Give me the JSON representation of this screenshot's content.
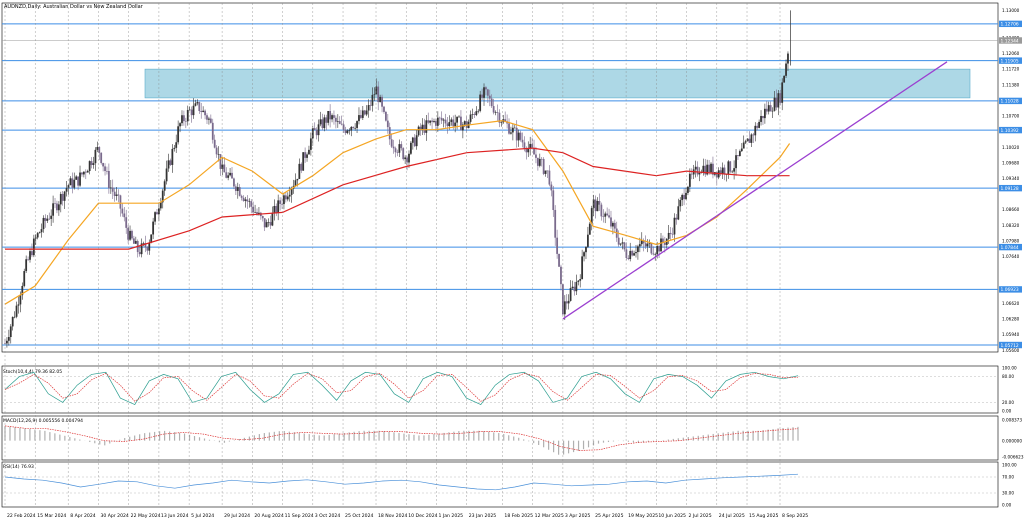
{
  "title": "AUDNZD,Daily: Australian Dollar vs New Zealand Dollar",
  "price_axis_labels": [
    "1.13000",
    "1.12400",
    "1.12060",
    "1.11720",
    "1.11380",
    "1.10700",
    "1.10020",
    "1.09680",
    "1.09340",
    "1.08660",
    "1.08320",
    "1.07980",
    "1.07640",
    "1.06620",
    "1.06280",
    "1.05940",
    "1.05600"
  ],
  "level_labels": [
    "1.12706",
    "1.11905",
    "1.11028",
    "1.10392",
    "1.09128",
    "1.07844",
    "1.06923",
    "1.05712"
  ],
  "current_price_label": "1.12344",
  "date_labels": [
    "22 Feb 2024",
    "15 Mar 2024",
    "8 Apr 2024",
    "30 Apr 2024",
    "22 May 2024",
    "13 Jun 2024",
    "5 Jul 2024",
    "29 Jul 2024",
    "20 Aug 2024",
    "11 Sep 2024",
    "3 Oct 2024",
    "25 Oct 2024",
    "18 Nov 2024",
    "10 Dec 2024",
    "1 Jan 2025",
    "23 Jan 2025",
    "18 Feb 2025",
    "12 Mar 2025",
    "3 Apr 2025",
    "25 Apr 2025",
    "19 May 2025",
    "10 Jun 2025",
    "2 Jul 2025",
    "24 Jul 2025",
    "15 Aug 2025",
    "8 Sep 2025"
  ],
  "stoch": {
    "label": "Stoch(10,4,4) 79.36 82.05",
    "axis_labels": [
      "100.00",
      "80.00",
      "20.00",
      "0.00"
    ]
  },
  "macd": {
    "label": "MACD(12,26,9) 0.005556 0.004794",
    "axis_labels": [
      "0.008373",
      "0.000000",
      "-0.006623"
    ]
  },
  "rsi": {
    "label": "RSI(14) 76.93",
    "axis_labels": [
      "100.00",
      "70.00",
      "30.00",
      "0.00"
    ]
  },
  "colors": {
    "up": "#333333",
    "down": "#7a6a8c",
    "level": "#3c8ee6",
    "zone": "#add8e6",
    "ma_fast": "#f5a623",
    "ma_slow": "#dd2222",
    "trend": "#9b3fd0",
    "stoch_main": "#2a9d8f",
    "stoch_signal": "#dd3333",
    "macd_hist": "#b0b0b0",
    "macd_signal": "#dd3333",
    "rsi": "#4a90d9"
  },
  "chart_data": {
    "type": "candlestick",
    "symbol": "AUDNZD",
    "timeframe": "Daily",
    "ylim": [
      1.0556,
      1.1316
    ],
    "horizontal_levels": [
      1.12706,
      1.11905,
      1.11028,
      1.10392,
      1.09128,
      1.07844,
      1.06923,
      1.05712
    ],
    "resistance_zone": [
      1.11028,
      1.1172
    ],
    "trend_line": {
      "from": [
        "3 Apr 2025",
        1.0628
      ],
      "to": [
        "~Oct 2025",
        1.1188
      ]
    },
    "close_path": [
      [
        "22 Feb 2024",
        1.0575
      ],
      [
        "1 Mar 2024",
        1.065
      ],
      [
        "8 Mar 2024",
        1.074
      ],
      [
        "15 Mar 2024",
        1.08
      ],
      [
        "22 Mar 2024",
        1.084
      ],
      [
        "29 Mar 2024",
        1.087
      ],
      [
        "8 Apr 2024",
        1.092
      ],
      [
        "15 Apr 2024",
        1.093
      ],
      [
        "22 Apr 2024",
        1.096
      ],
      [
        "30 Apr 2024",
        1.1
      ],
      [
        "8 May 2024",
        1.092
      ],
      [
        "15 May 2024",
        1.088
      ],
      [
        "22 May 2024",
        1.081
      ],
      [
        "29 May 2024",
        1.0775
      ],
      [
        "5 Jun 2024",
        1.079
      ],
      [
        "13 Jun 2024",
        1.088
      ],
      [
        "20 Jun 2024",
        1.096
      ],
      [
        "28 Jun 2024",
        1.105
      ],
      [
        "5 Jul 2024",
        1.108
      ],
      [
        "12 Jul 2024",
        1.109
      ],
      [
        "20 Jul 2024",
        1.106
      ],
      [
        "29 Jul 2024",
        1.095
      ],
      [
        "8 Aug 2024",
        1.092
      ],
      [
        "20 Aug 2024",
        1.087
      ],
      [
        "30 Aug 2024",
        1.083
      ],
      [
        "11 Sep 2024",
        1.089
      ],
      [
        "20 Sep 2024",
        1.093
      ],
      [
        "3 Oct 2024",
        1.103
      ],
      [
        "15 Oct 2024",
        1.107
      ],
      [
        "25 Oct 2024",
        1.104
      ],
      [
        "5 Nov 2024",
        1.106
      ],
      [
        "12 Nov 2024",
        1.108
      ],
      [
        "18 Nov 2024",
        1.113
      ],
      [
        "28 Nov 2024",
        1.102
      ],
      [
        "10 Dec 2024",
        1.098
      ],
      [
        "20 Dec 2024",
        1.104
      ],
      [
        "1 Jan 2025",
        1.106
      ],
      [
        "10 Jan 2025",
        1.106
      ],
      [
        "23 Jan 2025",
        1.105
      ],
      [
        "5 Feb 2025",
        1.112
      ],
      [
        "18 Feb 2025",
        1.106
      ],
      [
        "28 Feb 2025",
        1.103
      ],
      [
        "12 Mar 2025",
        1.099
      ],
      [
        "24 Mar 2025",
        1.094
      ],
      [
        "3 Apr 2025",
        1.065
      ],
      [
        "15 Apr 2025",
        1.072
      ],
      [
        "25 Apr 2025",
        1.088
      ],
      [
        "5 May 2025",
        1.085
      ],
      [
        "19 May 2025",
        1.077
      ],
      [
        "30 May 2025",
        1.079
      ],
      [
        "10 Jun 2025",
        1.078
      ],
      [
        "20 Jun 2025",
        1.081
      ],
      [
        "2 Jul 2025",
        1.092
      ],
      [
        "12 Jul 2025",
        1.096
      ],
      [
        "24 Jul 2025",
        1.095
      ],
      [
        "5 Aug 2025",
        1.096
      ],
      [
        "15 Aug 2025",
        1.101
      ],
      [
        "28 Aug 2025",
        1.108
      ],
      [
        "8 Sep 2025",
        1.111
      ],
      [
        "15 Sep 2025",
        1.1234
      ]
    ],
    "ma_fast_path": [
      [
        "22 Feb 2024",
        1.066
      ],
      [
        "15 Mar 2024",
        1.07
      ],
      [
        "8 Apr 2024",
        1.08
      ],
      [
        "30 Apr 2024",
        1.088
      ],
      [
        "22 May 2024",
        1.088
      ],
      [
        "13 Jun 2024",
        1.088
      ],
      [
        "5 Jul 2024",
        1.092
      ],
      [
        "29 Jul 2024",
        1.098
      ],
      [
        "20 Aug 2024",
        1.095
      ],
      [
        "11 Sep 2024",
        1.09
      ],
      [
        "3 Oct 2024",
        1.094
      ],
      [
        "25 Oct 2024",
        1.099
      ],
      [
        "18 Nov 2024",
        1.102
      ],
      [
        "10 Dec 2024",
        1.104
      ],
      [
        "1 Jan 2025",
        1.104
      ],
      [
        "23 Jan 2025",
        1.105
      ],
      [
        "18 Feb 2025",
        1.106
      ],
      [
        "12 Mar 2025",
        1.104
      ],
      [
        "3 Apr 2025",
        1.095
      ],
      [
        "25 Apr 2025",
        1.083
      ],
      [
        "19 May 2025",
        1.081
      ],
      [
        "10 Jun 2025",
        1.079
      ],
      [
        "2 Jul 2025",
        1.081
      ],
      [
        "24 Jul 2025",
        1.085
      ],
      [
        "15 Aug 2025",
        1.091
      ],
      [
        "8 Sep 2025",
        1.098
      ],
      [
        "15 Sep 2025",
        1.101
      ]
    ],
    "ma_slow_path": [
      [
        "22 Feb 2024",
        1.078
      ],
      [
        "22 May 2024",
        1.078
      ],
      [
        "5 Jul 2024",
        1.082
      ],
      [
        "29 Jul 2024",
        1.085
      ],
      [
        "11 Sep 2024",
        1.086
      ],
      [
        "25 Oct 2024",
        1.092
      ],
      [
        "10 Dec 2024",
        1.096
      ],
      [
        "23 Jan 2025",
        1.099
      ],
      [
        "12 Mar 2025",
        1.1
      ],
      [
        "3 Apr 2025",
        1.099
      ],
      [
        "25 Apr 2025",
        1.096
      ],
      [
        "10 Jun 2025",
        1.094
      ],
      [
        "2 Jul 2025",
        1.095
      ],
      [
        "15 Aug 2025",
        1.094
      ],
      [
        "15 Sep 2025",
        1.094
      ]
    ],
    "stoch_path": [
      50,
      80,
      90,
      40,
      20,
      60,
      85,
      90,
      30,
      15,
      70,
      85,
      75,
      20,
      30,
      80,
      90,
      50,
      20,
      40,
      85,
      90,
      60,
      25,
      70,
      90,
      85,
      40,
      20,
      75,
      90,
      80,
      30,
      15,
      60,
      85,
      90,
      70,
      20,
      30,
      80,
      90,
      75,
      40,
      20,
      75,
      85,
      80,
      60,
      30,
      70,
      85,
      90,
      80,
      75,
      82
    ],
    "macd_path": [
      0.006,
      0.005,
      0.004,
      0.002,
      0.0,
      -0.002,
      0.001,
      0.003,
      0.004,
      0.003,
      0.001,
      -0.001,
      0.001,
      0.003,
      0.004,
      0.003,
      0.002,
      0.003,
      0.004,
      0.004,
      0.003,
      0.002,
      0.003,
      0.004,
      0.004,
      0.003,
      0.001,
      -0.002,
      -0.006,
      -0.004,
      -0.001,
      0.0,
      -0.001,
      0.0,
      0.001,
      0.002,
      0.003,
      0.004,
      0.004,
      0.005,
      0.0056
    ],
    "rsi_path": [
      70,
      65,
      62,
      55,
      45,
      52,
      60,
      58,
      48,
      42,
      50,
      55,
      62,
      58,
      55,
      60,
      63,
      58,
      52,
      55,
      60,
      62,
      58,
      50,
      45,
      40,
      38,
      45,
      55,
      52,
      48,
      50,
      52,
      58,
      60,
      55,
      62,
      65,
      68,
      70,
      72,
      74,
      76.93
    ]
  }
}
